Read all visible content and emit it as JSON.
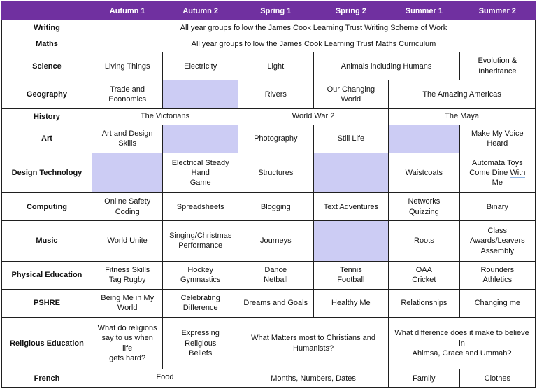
{
  "colors": {
    "header_bg": "#7030A0",
    "header_text": "#FFFFFF",
    "empty_cell_bg": "#CCCCF4",
    "border": "#1F1F1F",
    "grammar_underline": "#8EB4E3"
  },
  "header": {
    "columns": [
      "",
      "Autumn 1",
      "Autumn 2",
      "Spring 1",
      "Spring 2",
      "Summer 1",
      "Summer 2"
    ]
  },
  "rows": [
    {
      "id": "writing",
      "subject": "Writing",
      "cells": [
        {
          "text": "All year groups follow the James Cook Learning Trust Writing Scheme of Work",
          "colspan": 6
        }
      ]
    },
    {
      "id": "maths",
      "subject": "Maths",
      "cells": [
        {
          "text": "All year groups follow the James Cook Learning Trust Maths Curriculum",
          "colspan": 6
        }
      ]
    },
    {
      "id": "science",
      "subject": "Science",
      "cells": [
        {
          "text": "Living Things"
        },
        {
          "text": "Electricity"
        },
        {
          "text": "Light"
        },
        {
          "text": "Animals including Humans",
          "colspan": 2
        },
        {
          "text": "Evolution &\nInheritance"
        }
      ]
    },
    {
      "id": "geography",
      "subject": "Geography",
      "cells": [
        {
          "text": "Trade and\nEconomics"
        },
        {
          "empty": true
        },
        {
          "text": "Rivers"
        },
        {
          "text": "Our Changing World"
        },
        {
          "text": "The Amazing Americas",
          "colspan": 2
        }
      ]
    },
    {
      "id": "history",
      "subject": "History",
      "cells": [
        {
          "text": "The Victorians",
          "colspan": 2
        },
        {
          "text": "World War 2",
          "colspan": 2
        },
        {
          "text": "The Maya",
          "colspan": 2
        }
      ]
    },
    {
      "id": "art",
      "subject": "Art",
      "cells": [
        {
          "text": "Art and Design Skills"
        },
        {
          "empty": true
        },
        {
          "text": "Photography"
        },
        {
          "text": "Still Life"
        },
        {
          "empty": true
        },
        {
          "text": "Make My Voice Heard"
        }
      ]
    },
    {
      "id": "design-technology",
      "subject": "Design Technology",
      "cells": [
        {
          "empty": true
        },
        {
          "text": "Electrical Steady Hand\nGame"
        },
        {
          "text": "Structures"
        },
        {
          "empty": true
        },
        {
          "text": "Waistcoats"
        },
        {
          "parts": [
            {
              "t": "Automata Toys\nCome Dine "
            },
            {
              "t": "With",
              "u": true
            },
            {
              "t": " Me"
            }
          ]
        }
      ]
    },
    {
      "id": "computing",
      "subject": "Computing",
      "cells": [
        {
          "text": "Online Safety\nCoding"
        },
        {
          "text": "Spreadsheets"
        },
        {
          "text": "Blogging"
        },
        {
          "text": "Text Adventures"
        },
        {
          "text": "Networks\nQuizzing"
        },
        {
          "text": "Binary"
        }
      ]
    },
    {
      "id": "music",
      "subject": "Music",
      "cells": [
        {
          "text": "World Unite"
        },
        {
          "text": "Singing/Christmas\nPerformance"
        },
        {
          "text": "Journeys"
        },
        {
          "empty": true
        },
        {
          "text": "Roots"
        },
        {
          "text": "Class Awards/Leavers\nAssembly"
        }
      ]
    },
    {
      "id": "physical-education",
      "subject": "Physical Education",
      "cells": [
        {
          "text": "Fitness Skills\nTag Rugby"
        },
        {
          "text": "Hockey\nGymnastics"
        },
        {
          "text": "Dance\nNetball"
        },
        {
          "text": "Tennis\nFootball"
        },
        {
          "text": "OAA\nCricket"
        },
        {
          "text": "Rounders\nAthletics"
        }
      ]
    },
    {
      "id": "pshre",
      "subject": "PSHRE",
      "cells": [
        {
          "text": "Being Me in My\nWorld"
        },
        {
          "text": "Celebrating Difference"
        },
        {
          "text": "Dreams and Goals"
        },
        {
          "text": "Healthy Me"
        },
        {
          "text": "Relationships"
        },
        {
          "text": "Changing me"
        }
      ]
    },
    {
      "id": "religious-education",
      "subject": "Religious Education",
      "cells": [
        {
          "text": "What do religions\nsay to us when life\ngets hard?"
        },
        {
          "text": "Expressing Religious\nBeliefs"
        },
        {
          "text": "What Matters most to Christians and\nHumanists?",
          "colspan": 2
        },
        {
          "text": "What difference does it make to believe in\nAhimsa, Grace and Ummah?",
          "colspan": 2
        }
      ]
    },
    {
      "id": "french",
      "subject": "French",
      "cells": [
        {
          "text": "Food",
          "colspan": 2,
          "align": "top"
        },
        {
          "text": "Months, Numbers, Dates",
          "colspan": 2
        },
        {
          "text": "Family"
        },
        {
          "text": "Clothes"
        }
      ]
    }
  ]
}
